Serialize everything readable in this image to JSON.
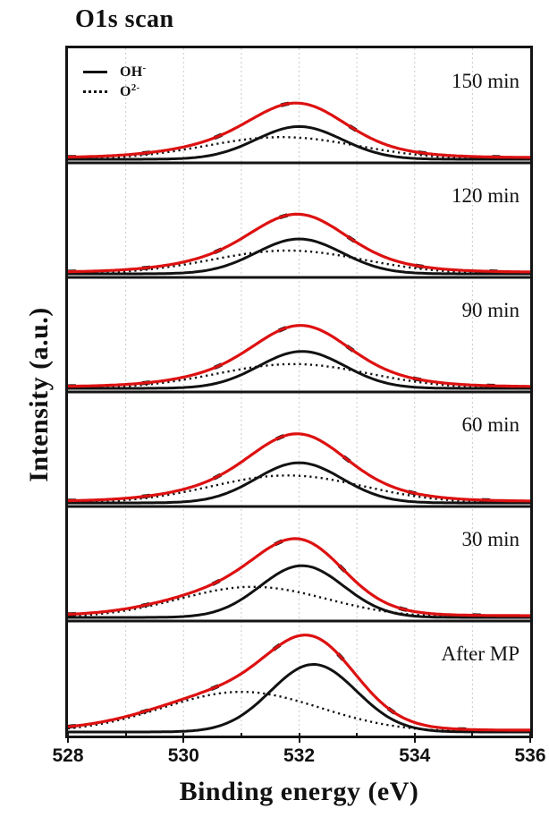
{
  "figure": {
    "title": "O1s scan"
  },
  "chart_data": {
    "type": "line",
    "title": "O1s scan",
    "xlabel": "Binding energy (eV)",
    "ylabel": "Intensity (a.u.)",
    "xlim": [
      528,
      536
    ],
    "x_ticks_major": [
      528,
      530,
      532,
      534,
      536
    ],
    "x_ticks_minor": [
      529,
      531,
      533,
      535
    ],
    "gridlines_x": [
      529,
      530,
      531,
      532,
      533,
      534,
      535
    ],
    "grid": true,
    "y_axis": "arbitrary units, no ticks",
    "legend_position": "inside bottom panel, top-left",
    "legend": [
      {
        "text": "OH",
        "sup": "-",
        "style": "solid black line",
        "meaning": "hydroxide oxygen component"
      },
      {
        "text": "O",
        "sup": "2-",
        "style": "dotted black line",
        "meaning": "lattice oxide oxygen component"
      }
    ],
    "colors": {
      "envelope": "#dd1111",
      "components": "#121212",
      "grid": "#c9c9c9",
      "frame": "#141414"
    },
    "series_note": "Each panel: red solid envelope = sum of the two black Gaussian components; heights are fractions of panel height; centers/FWHM in eV.",
    "panels": [
      {
        "label": "150 min",
        "oh": {
          "center_eV": 532.0,
          "height": 0.31,
          "fwhm_eV": 1.75
        },
        "o2": {
          "center_eV": 531.7,
          "height": 0.21,
          "fwhm_eV": 3.1
        },
        "envelope_peak_height": 0.52
      },
      {
        "label": "120 min",
        "oh": {
          "center_eV": 532.0,
          "height": 0.33,
          "fwhm_eV": 1.75
        },
        "o2": {
          "center_eV": 531.8,
          "height": 0.22,
          "fwhm_eV": 3.1
        },
        "envelope_peak_height": 0.54
      },
      {
        "label": "90 min",
        "oh": {
          "center_eV": 532.05,
          "height": 0.35,
          "fwhm_eV": 1.75
        },
        "o2": {
          "center_eV": 531.9,
          "height": 0.23,
          "fwhm_eV": 3.1
        },
        "envelope_peak_height": 0.57
      },
      {
        "label": "60 min",
        "oh": {
          "center_eV": 532.0,
          "height": 0.38,
          "fwhm_eV": 1.75
        },
        "o2": {
          "center_eV": 531.8,
          "height": 0.26,
          "fwhm_eV": 3.1
        },
        "envelope_peak_height": 0.63
      },
      {
        "label": "30 min",
        "oh": {
          "center_eV": 532.05,
          "height": 0.49,
          "fwhm_eV": 1.7
        },
        "o2": {
          "center_eV": 531.2,
          "height": 0.29,
          "fwhm_eV": 3.0
        },
        "envelope_peak_height": 0.72
      },
      {
        "label": "After MP",
        "oh": {
          "center_eV": 532.25,
          "height": 0.64,
          "fwhm_eV": 1.75
        },
        "o2": {
          "center_eV": 531.0,
          "height": 0.38,
          "fwhm_eV": 3.2
        },
        "envelope_peak_height": 0.91
      }
    ]
  }
}
